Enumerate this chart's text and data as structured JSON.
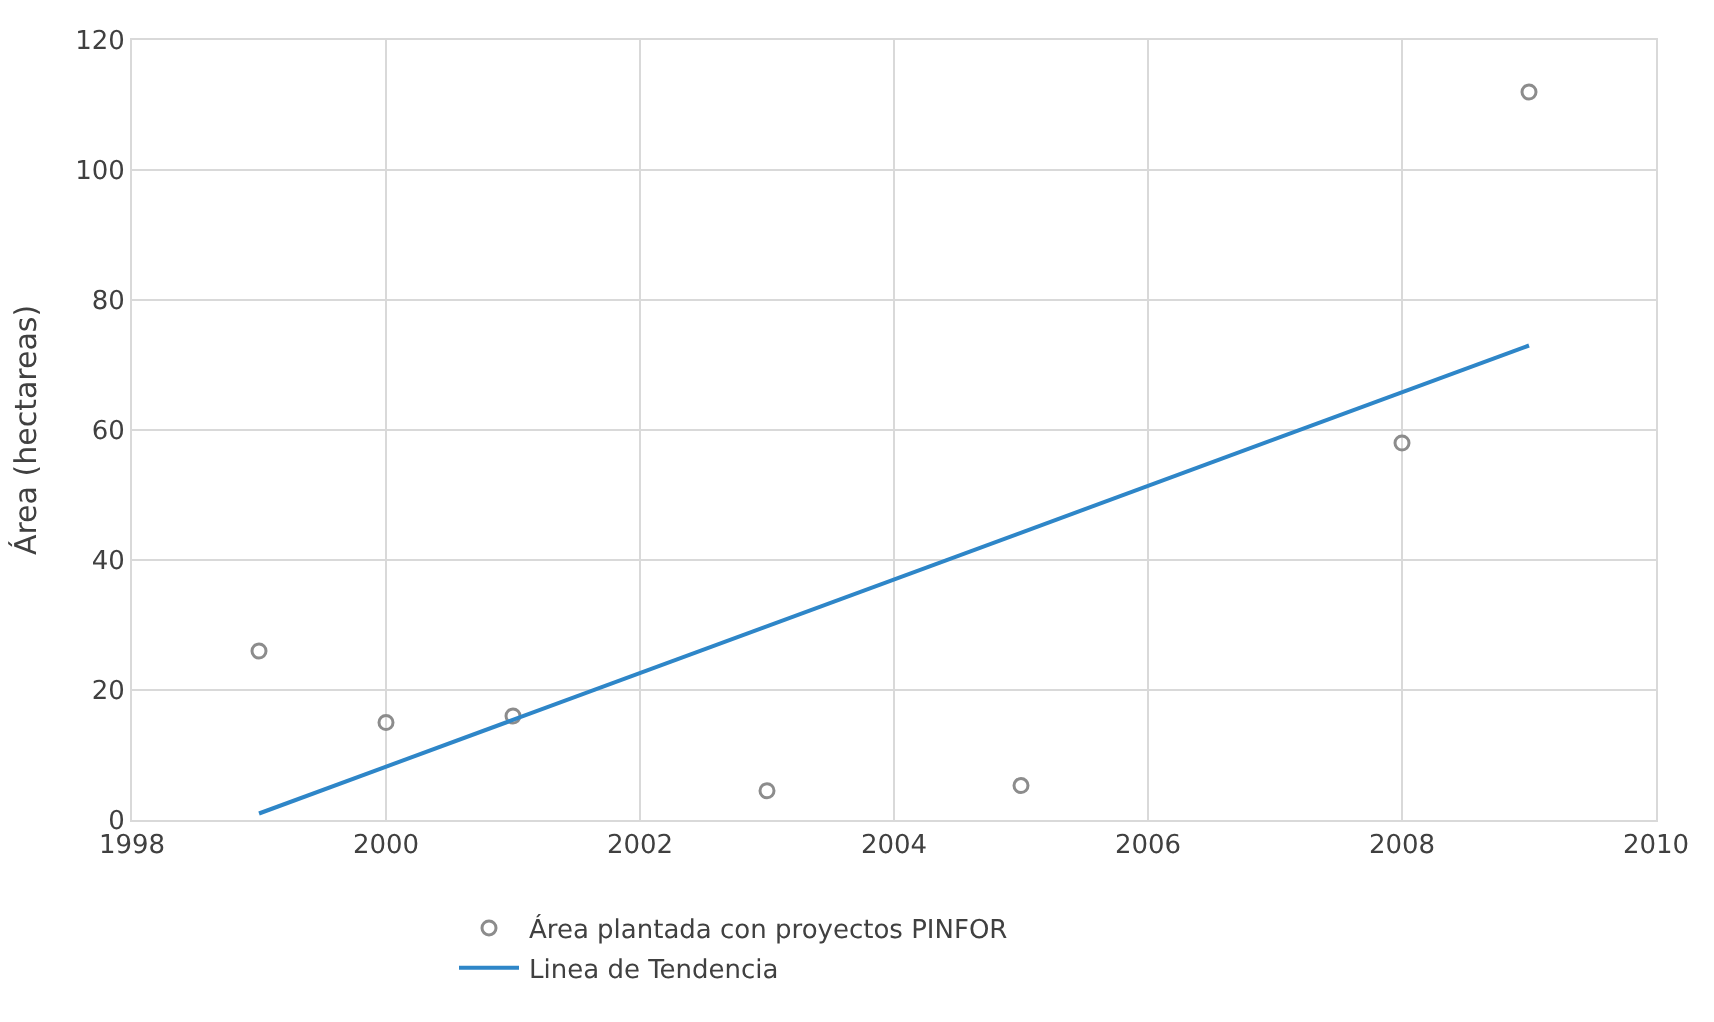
{
  "chart_data": {
    "type": "scatter",
    "ylabel": "Área (hectareas)",
    "xlim": [
      1998,
      2010
    ],
    "xticks": [
      1998,
      2000,
      2002,
      2004,
      2006,
      2008,
      2010
    ],
    "ylim": [
      0,
      120
    ],
    "yticks": [
      0,
      20,
      40,
      60,
      80,
      100,
      120
    ],
    "grid": true,
    "legend": "bottom",
    "series": [
      {
        "name": "Área plantada con proyectos PINFOR",
        "marker": "circle",
        "color": "#8c8c8c",
        "x": [
          1999,
          2000,
          2001,
          2003,
          2005,
          2008,
          2009
        ],
        "values": [
          26,
          15,
          16,
          4.5,
          5.3,
          58,
          112
        ]
      },
      {
        "name": "Linea de Tendencia",
        "type": "line",
        "marker": "none",
        "line_style": "solid",
        "color": "#2e86c8",
        "x": [
          1999,
          2009
        ],
        "values": [
          1,
          73
        ]
      }
    ]
  }
}
